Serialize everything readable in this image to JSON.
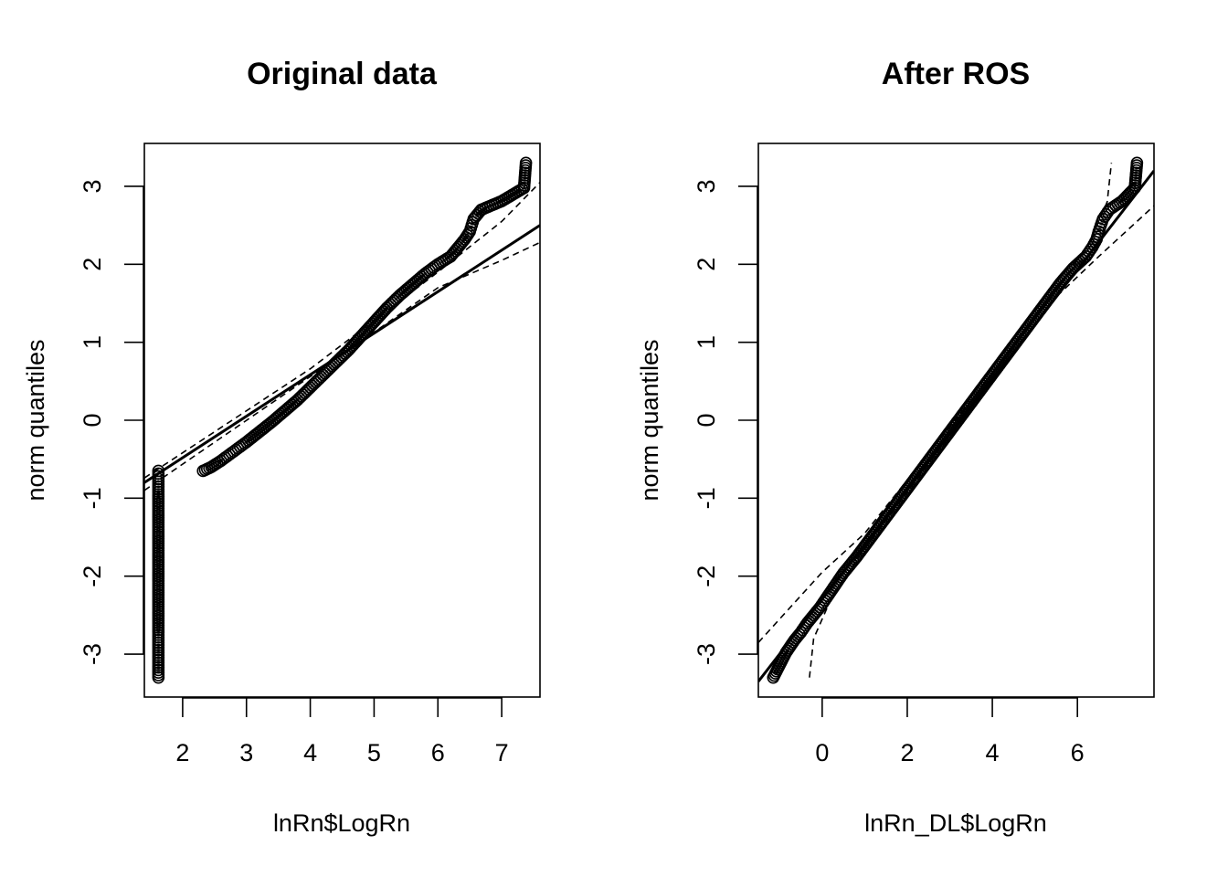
{
  "chart_data": [
    {
      "type": "scatter",
      "subtype": "qq-plot",
      "title": "Original data",
      "xlabel": "lnRn$LogRn",
      "ylabel": "norm quantiles",
      "xlim": [
        1.4,
        7.6
      ],
      "ylim": [
        -3.55,
        3.55
      ],
      "x_ticks": [
        2,
        3,
        4,
        5,
        6,
        7
      ],
      "y_ticks": [
        -3,
        -2,
        -1,
        0,
        1,
        2,
        3
      ],
      "grid": false,
      "legend": "none",
      "marker": "open-circle",
      "points": [
        [
          1.62,
          -3.3
        ],
        [
          1.62,
          -2.98
        ],
        [
          1.62,
          -2.82
        ],
        [
          1.62,
          -2.72
        ],
        [
          1.62,
          -2.6
        ],
        [
          1.62,
          -2.45
        ],
        [
          1.62,
          -2.3
        ],
        [
          1.62,
          -2.15
        ],
        [
          1.62,
          -2.0
        ],
        [
          1.62,
          -1.85
        ],
        [
          1.62,
          -1.7
        ],
        [
          1.62,
          -1.55
        ],
        [
          1.62,
          -1.4
        ],
        [
          1.62,
          -1.25
        ],
        [
          1.62,
          -1.1
        ],
        [
          1.62,
          -0.95
        ],
        [
          1.62,
          -0.82
        ],
        [
          1.62,
          -0.72
        ],
        [
          1.62,
          -0.65
        ],
        [
          2.32,
          -0.65
        ],
        [
          2.45,
          -0.6
        ],
        [
          2.6,
          -0.52
        ],
        [
          2.8,
          -0.4
        ],
        [
          3.0,
          -0.28
        ],
        [
          3.2,
          -0.15
        ],
        [
          3.4,
          -0.02
        ],
        [
          3.6,
          0.12
        ],
        [
          3.8,
          0.26
        ],
        [
          4.0,
          0.42
        ],
        [
          4.2,
          0.58
        ],
        [
          4.4,
          0.74
        ],
        [
          4.6,
          0.9
        ],
        [
          4.8,
          1.08
        ],
        [
          5.0,
          1.26
        ],
        [
          5.2,
          1.44
        ],
        [
          5.4,
          1.6
        ],
        [
          5.6,
          1.74
        ],
        [
          5.8,
          1.88
        ],
        [
          6.0,
          2.0
        ],
        [
          6.2,
          2.1
        ],
        [
          6.32,
          2.22
        ],
        [
          6.42,
          2.32
        ],
        [
          6.5,
          2.42
        ],
        [
          6.53,
          2.5
        ],
        [
          6.56,
          2.58
        ],
        [
          6.68,
          2.7
        ],
        [
          7.0,
          2.81
        ],
        [
          7.35,
          2.98
        ],
        [
          7.38,
          3.3
        ]
      ],
      "reference_line": [
        [
          1.4,
          -0.8
        ],
        [
          7.6,
          2.5
        ]
      ],
      "envelope_upper": [
        [
          1.4,
          -0.74
        ],
        [
          4.0,
          0.66
        ],
        [
          6.0,
          1.9
        ],
        [
          7.0,
          2.55
        ],
        [
          7.6,
          3.05
        ]
      ],
      "envelope_lower": [
        [
          1.4,
          -0.9
        ],
        [
          4.0,
          0.56
        ],
        [
          6.0,
          1.7
        ],
        [
          7.0,
          2.05
        ],
        [
          7.6,
          2.28
        ]
      ]
    },
    {
      "type": "scatter",
      "subtype": "qq-plot",
      "title": "After ROS",
      "xlabel": "lnRn_DL$LogRn",
      "ylabel": "norm quantiles",
      "xlim": [
        -1.5,
        7.8
      ],
      "ylim": [
        -3.55,
        3.55
      ],
      "x_ticks": [
        0,
        2,
        4,
        6
      ],
      "y_ticks": [
        -3,
        -2,
        -1,
        0,
        1,
        2,
        3
      ],
      "grid": false,
      "legend": "none",
      "marker": "open-circle",
      "points": [
        [
          -1.15,
          -3.3
        ],
        [
          -0.85,
          -2.98
        ],
        [
          -0.65,
          -2.82
        ],
        [
          -0.5,
          -2.72
        ],
        [
          -0.35,
          -2.6
        ],
        [
          -0.2,
          -2.5
        ],
        [
          -0.05,
          -2.4
        ],
        [
          0.1,
          -2.28
        ],
        [
          0.3,
          -2.12
        ],
        [
          0.5,
          -1.96
        ],
        [
          0.8,
          -1.76
        ],
        [
          1.1,
          -1.54
        ],
        [
          1.4,
          -1.32
        ],
        [
          1.7,
          -1.1
        ],
        [
          2.0,
          -0.88
        ],
        [
          2.3,
          -0.66
        ],
        [
          2.6,
          -0.44
        ],
        [
          2.9,
          -0.22
        ],
        [
          3.2,
          0.0
        ],
        [
          3.5,
          0.22
        ],
        [
          3.8,
          0.44
        ],
        [
          4.1,
          0.66
        ],
        [
          4.4,
          0.88
        ],
        [
          4.7,
          1.1
        ],
        [
          5.0,
          1.32
        ],
        [
          5.3,
          1.54
        ],
        [
          5.6,
          1.76
        ],
        [
          5.9,
          1.95
        ],
        [
          6.2,
          2.1
        ],
        [
          6.35,
          2.22
        ],
        [
          6.45,
          2.32
        ],
        [
          6.5,
          2.42
        ],
        [
          6.55,
          2.5
        ],
        [
          6.6,
          2.58
        ],
        [
          6.75,
          2.7
        ],
        [
          7.05,
          2.81
        ],
        [
          7.35,
          2.98
        ],
        [
          7.4,
          3.3
        ]
      ],
      "reference_line": [
        [
          -1.5,
          -3.35
        ],
        [
          7.8,
          3.2
        ]
      ],
      "envelope_upper": [
        [
          -1.5,
          -2.85
        ],
        [
          0.0,
          -1.95
        ],
        [
          1.0,
          -1.45
        ],
        [
          3.2,
          0.05
        ],
        [
          5.5,
          1.65
        ],
        [
          6.3,
          2.3
        ],
        [
          6.7,
          2.8
        ],
        [
          6.8,
          3.3
        ]
      ],
      "envelope_lower": [
        [
          -0.3,
          -3.3
        ],
        [
          -0.2,
          -2.8
        ],
        [
          0.2,
          -2.3
        ],
        [
          0.8,
          -1.8
        ],
        [
          3.2,
          -0.05
        ],
        [
          5.5,
          1.58
        ],
        [
          6.5,
          2.1
        ],
        [
          7.8,
          2.75
        ]
      ]
    }
  ]
}
